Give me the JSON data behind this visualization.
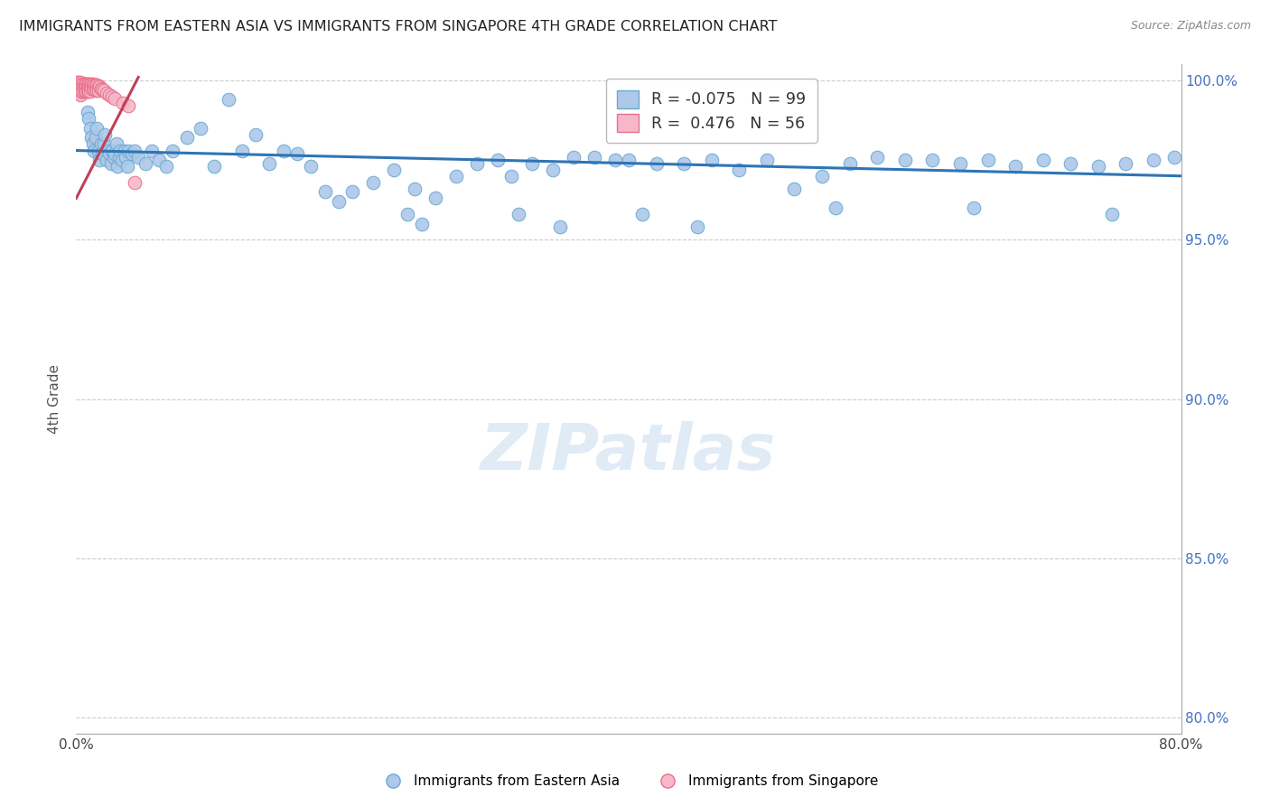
{
  "title": "IMMIGRANTS FROM EASTERN ASIA VS IMMIGRANTS FROM SINGAPORE 4TH GRADE CORRELATION CHART",
  "source": "Source: ZipAtlas.com",
  "ylabel": "4th Grade",
  "xlim": [
    0.0,
    0.8
  ],
  "ylim": [
    0.795,
    1.005
  ],
  "yticks": [
    0.8,
    0.85,
    0.9,
    0.95,
    1.0
  ],
  "ytick_labels": [
    "80.0%",
    "85.0%",
    "90.0%",
    "95.0%",
    "100.0%"
  ],
  "xticks": [
    0.0,
    0.1,
    0.2,
    0.3,
    0.4,
    0.5,
    0.6,
    0.7,
    0.8
  ],
  "xtick_labels": [
    "0.0%",
    "",
    "",
    "",
    "",
    "",
    "",
    "",
    "80.0%"
  ],
  "blue_color": "#adc8e8",
  "blue_edge_color": "#6aaad4",
  "pink_color": "#f5b8cb",
  "pink_edge_color": "#e8708a",
  "trend_line_color": "#2e75b6",
  "pink_trend_line_color": "#c0405a",
  "legend_R_blue": "-0.075",
  "legend_N_blue": "99",
  "legend_R_pink": "0.476",
  "legend_N_pink": "56",
  "blue_x": [
    0.002,
    0.003,
    0.004,
    0.005,
    0.006,
    0.007,
    0.008,
    0.009,
    0.01,
    0.011,
    0.012,
    0.013,
    0.014,
    0.015,
    0.016,
    0.017,
    0.018,
    0.019,
    0.02,
    0.021,
    0.022,
    0.023,
    0.024,
    0.025,
    0.026,
    0.027,
    0.028,
    0.029,
    0.03,
    0.031,
    0.032,
    0.033,
    0.035,
    0.036,
    0.037,
    0.038,
    0.04,
    0.042,
    0.045,
    0.05,
    0.055,
    0.06,
    0.065,
    0.07,
    0.08,
    0.09,
    0.1,
    0.11,
    0.12,
    0.13,
    0.14,
    0.15,
    0.16,
    0.17,
    0.18,
    0.19,
    0.2,
    0.215,
    0.23,
    0.245,
    0.26,
    0.275,
    0.29,
    0.305,
    0.315,
    0.33,
    0.345,
    0.36,
    0.375,
    0.39,
    0.4,
    0.42,
    0.44,
    0.46,
    0.48,
    0.5,
    0.52,
    0.54,
    0.56,
    0.58,
    0.6,
    0.62,
    0.64,
    0.66,
    0.68,
    0.7,
    0.72,
    0.74,
    0.76,
    0.78,
    0.795,
    0.24,
    0.25,
    0.32,
    0.35,
    0.41,
    0.45,
    0.55,
    0.65,
    0.75
  ],
  "blue_y": [
    0.997,
    0.999,
    0.998,
    0.997,
    0.999,
    0.998,
    0.99,
    0.988,
    0.985,
    0.982,
    0.98,
    0.978,
    0.982,
    0.985,
    0.978,
    0.975,
    0.98,
    0.977,
    0.98,
    0.983,
    0.975,
    0.978,
    0.977,
    0.974,
    0.978,
    0.976,
    0.977,
    0.98,
    0.973,
    0.976,
    0.978,
    0.975,
    0.978,
    0.976,
    0.973,
    0.978,
    0.977,
    0.978,
    0.976,
    0.974,
    0.978,
    0.975,
    0.973,
    0.978,
    0.982,
    0.985,
    0.973,
    0.994,
    0.978,
    0.983,
    0.974,
    0.978,
    0.977,
    0.973,
    0.965,
    0.962,
    0.965,
    0.968,
    0.972,
    0.966,
    0.963,
    0.97,
    0.974,
    0.975,
    0.97,
    0.974,
    0.972,
    0.976,
    0.976,
    0.975,
    0.975,
    0.974,
    0.974,
    0.975,
    0.972,
    0.975,
    0.966,
    0.97,
    0.974,
    0.976,
    0.975,
    0.975,
    0.974,
    0.975,
    0.973,
    0.975,
    0.974,
    0.973,
    0.974,
    0.975,
    0.976,
    0.958,
    0.955,
    0.958,
    0.954,
    0.958,
    0.954,
    0.96,
    0.96,
    0.958
  ],
  "pink_x": [
    0.001,
    0.001,
    0.001,
    0.002,
    0.002,
    0.002,
    0.002,
    0.003,
    0.003,
    0.003,
    0.003,
    0.003,
    0.004,
    0.004,
    0.004,
    0.005,
    0.005,
    0.005,
    0.006,
    0.006,
    0.006,
    0.007,
    0.007,
    0.007,
    0.008,
    0.008,
    0.008,
    0.009,
    0.009,
    0.009,
    0.01,
    0.01,
    0.01,
    0.011,
    0.011,
    0.012,
    0.012,
    0.013,
    0.013,
    0.014,
    0.014,
    0.015,
    0.015,
    0.016,
    0.016,
    0.017,
    0.018,
    0.019,
    0.02,
    0.022,
    0.024,
    0.026,
    0.028,
    0.034,
    0.038,
    0.042
  ],
  "pink_y": [
    0.9995,
    0.9988,
    0.9975,
    0.9995,
    0.9988,
    0.9975,
    0.996,
    0.9995,
    0.9985,
    0.9975,
    0.9965,
    0.9955,
    0.999,
    0.9978,
    0.9965,
    0.999,
    0.9978,
    0.9965,
    0.999,
    0.9978,
    0.9965,
    0.999,
    0.9978,
    0.9965,
    0.999,
    0.9978,
    0.9965,
    0.999,
    0.9978,
    0.9965,
    0.999,
    0.9978,
    0.9965,
    0.9988,
    0.9975,
    0.9988,
    0.9975,
    0.9985,
    0.9972,
    0.9985,
    0.9972,
    0.9985,
    0.997,
    0.9982,
    0.9968,
    0.998,
    0.9975,
    0.9972,
    0.9968,
    0.996,
    0.9955,
    0.995,
    0.9942,
    0.993,
    0.992,
    0.968
  ]
}
